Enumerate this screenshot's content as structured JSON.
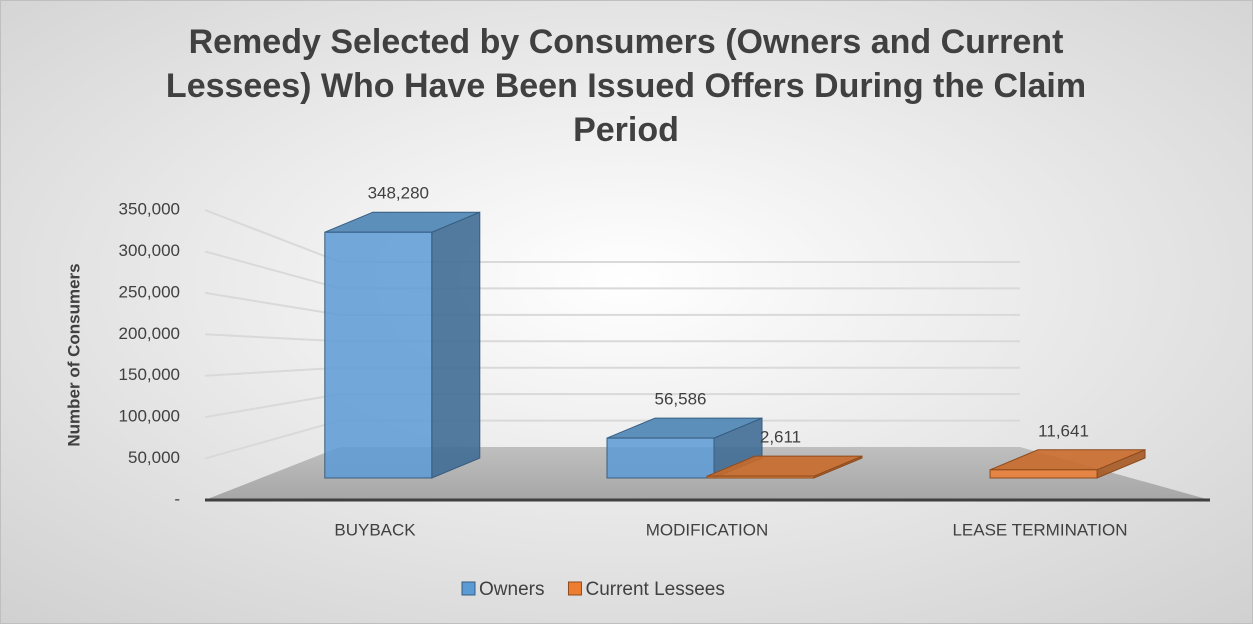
{
  "chart_data": {
    "type": "bar3d",
    "title": "Remedy Selected by Consumers (Owners and Current Lessees) Who Have Been Issued Offers During the Claim Period",
    "y_label": "Number of Consumers",
    "categories": [
      "BUYBACK",
      "MODIFICATION",
      "LEASE TERMINATION"
    ],
    "series": [
      {
        "name": "Owners",
        "color": "#5b9bd5",
        "values": [
          348280,
          56586,
          null
        ],
        "value_labels": [
          "348,280",
          "56,586",
          null
        ]
      },
      {
        "name": "Current Lessees",
        "color": "#ed7d31",
        "values": [
          null,
          2611,
          11641
        ],
        "value_labels": [
          null,
          "2,611",
          "11,641"
        ]
      }
    ],
    "ylim": [
      0,
      350000
    ],
    "yticks": [
      {
        "value": 0,
        "label": "-"
      },
      {
        "value": 50000,
        "label": "50,000"
      },
      {
        "value": 100000,
        "label": "100,000"
      },
      {
        "value": 150000,
        "label": "150,000"
      },
      {
        "value": 200000,
        "label": "200,000"
      },
      {
        "value": 250000,
        "label": "250,000"
      },
      {
        "value": 300000,
        "label": "300,000"
      },
      {
        "value": 350000,
        "label": "350,000"
      }
    ],
    "grid": true,
    "legend": "bottom"
  }
}
